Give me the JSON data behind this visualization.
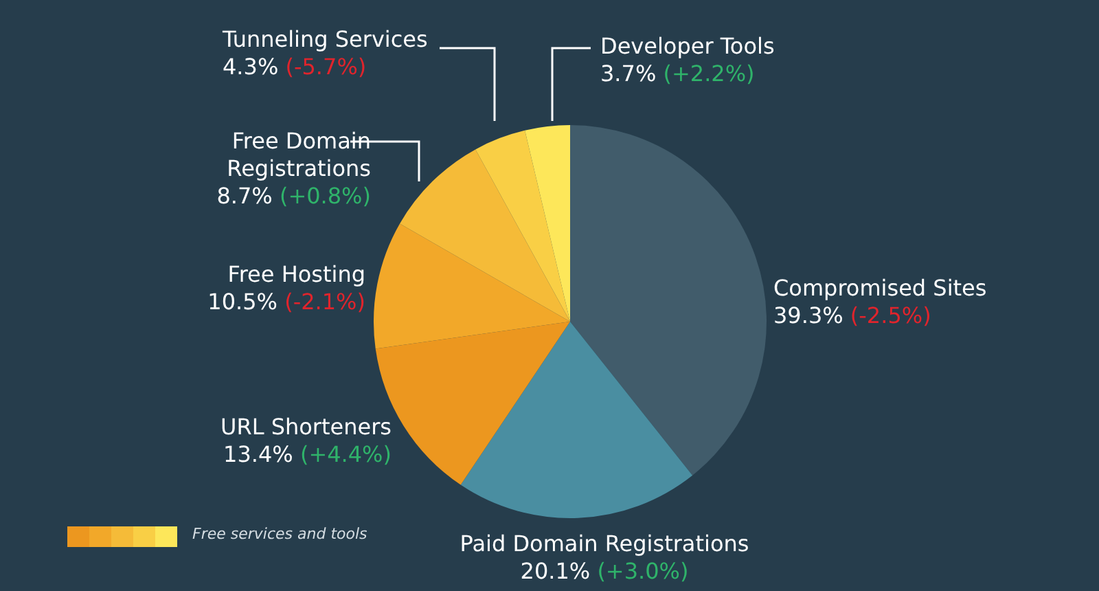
{
  "chart_data": {
    "type": "pie",
    "categories": [
      "Compromised Sites",
      "Paid Domain Registrations",
      "URL Shorteners",
      "Free Hosting",
      "Free Domain Registrations",
      "Tunneling Services",
      "Developer Tools"
    ],
    "values": [
      39.3,
      20.1,
      13.4,
      10.5,
      8.7,
      4.3,
      3.7
    ],
    "colors": [
      "#415c6b",
      "#4a8ea1",
      "#ec971f",
      "#f2a829",
      "#f5bb38",
      "#f9cf45",
      "#fde75a"
    ],
    "value_labels": [
      "39.3% (-2.5%)",
      "20.1% (+3.0%)",
      "13.4% (+4.4%)",
      "10.5% (-2.1%)",
      "8.7% (+0.8%)",
      "4.3% (-5.7%)",
      "3.7% (+2.2%)"
    ],
    "annotations": [
      "Free services and tools"
    ]
  }
}
